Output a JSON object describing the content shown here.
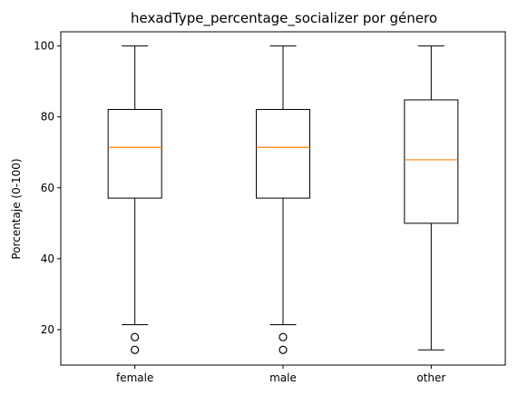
{
  "chart_data": {
    "type": "box",
    "title": "hexadType_percentage_socializer por género",
    "xlabel": "",
    "ylabel": "Porcentaje (0-100)",
    "ylim": [
      10,
      104
    ],
    "yticks": [
      20,
      40,
      60,
      80,
      100
    ],
    "categories": [
      "female",
      "male",
      "other"
    ],
    "boxes": [
      {
        "category": "female",
        "whisker_low": 21.4,
        "q1": 57.1,
        "median": 71.4,
        "q3": 82.1,
        "whisker_high": 100,
        "outliers": [
          17.9,
          17.9,
          14.3,
          14.3
        ]
      },
      {
        "category": "male",
        "whisker_low": 21.4,
        "q1": 57.1,
        "median": 71.4,
        "q3": 82.1,
        "whisker_high": 100,
        "outliers": [
          17.9,
          17.9,
          14.3,
          14.3
        ]
      },
      {
        "category": "other",
        "whisker_low": 14.3,
        "q1": 50.0,
        "median": 67.9,
        "q3": 84.8,
        "whisker_high": 100,
        "outliers": []
      }
    ],
    "colors": {
      "box": "#000000",
      "median": "#ff7f0e"
    },
    "grid": false,
    "legend": "none"
  }
}
